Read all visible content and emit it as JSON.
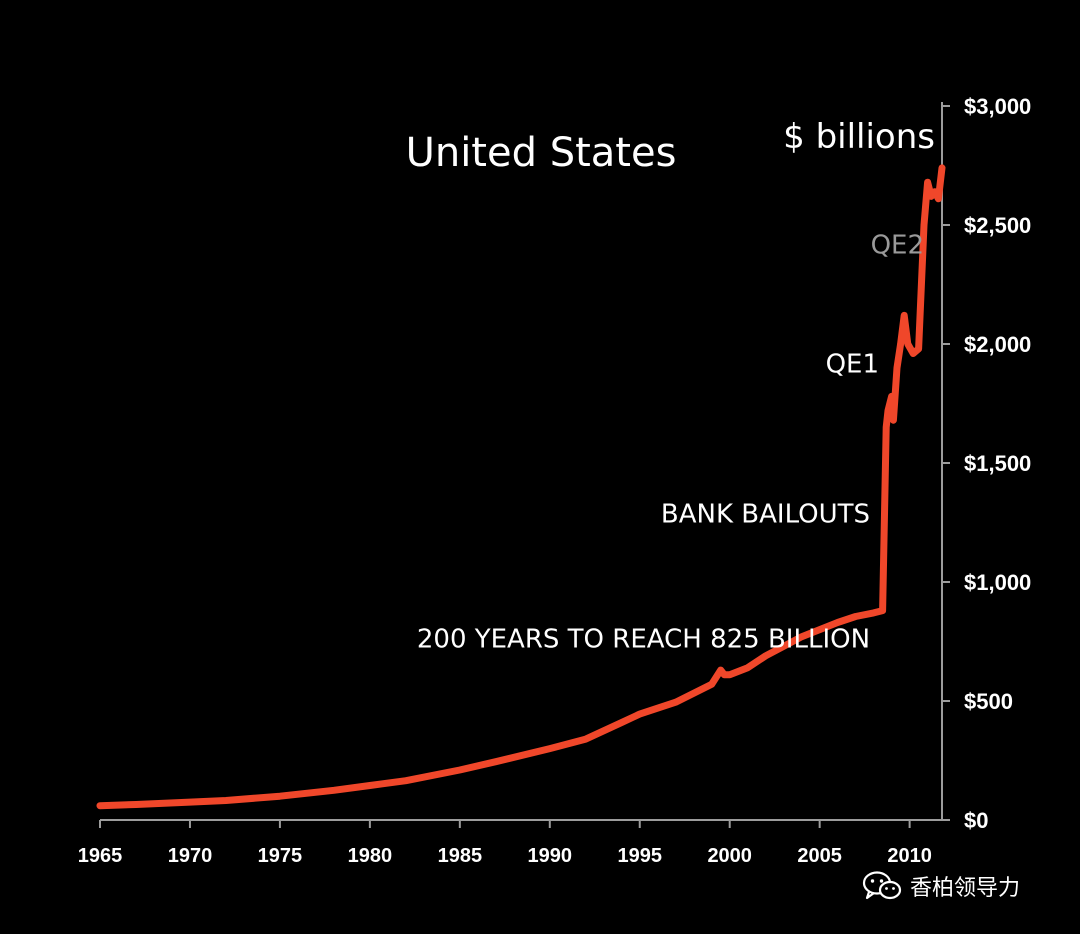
{
  "chart_data": {
    "type": "line",
    "title": "United States",
    "ylabel": "$ billions",
    "xlabel": "",
    "xlim": [
      1965,
      2011.8
    ],
    "ylim": [
      0,
      3000
    ],
    "x_ticks": [
      1965,
      1970,
      1975,
      1980,
      1985,
      1990,
      1995,
      2000,
      2005,
      2010
    ],
    "y_ticks": [
      0,
      500,
      1000,
      1500,
      2000,
      2500,
      3000
    ],
    "y_tick_labels": [
      "$0",
      "$500",
      "$1,000",
      "$1,500",
      "$2,000",
      "$2,500",
      "$3,000"
    ],
    "grid": false,
    "line_color": "#f0472a",
    "series": [
      {
        "x": [
          1965,
          1967,
          1970,
          1972,
          1975,
          1978,
          1980,
          1982,
          1985,
          1987,
          1990,
          1992,
          1994,
          1995,
          1997,
          1999,
          1999.5,
          1999.7,
          2000,
          2001,
          2002,
          2003,
          2004,
          2005,
          2006,
          2007,
          2008,
          2008.5,
          2008.7,
          2008.8,
          2009,
          2009.1,
          2009.3,
          2009.5,
          2009.7,
          2009.9,
          2010.2,
          2010.5,
          2010.8,
          2011,
          2011.2,
          2011.4,
          2011.6,
          2011.8
        ],
        "y": [
          60,
          65,
          75,
          82,
          100,
          125,
          145,
          165,
          210,
          245,
          300,
          340,
          410,
          445,
          495,
          570,
          630,
          610,
          610,
          640,
          690,
          730,
          770,
          800,
          830,
          855,
          870,
          880,
          1650,
          1720,
          1780,
          1680,
          1900,
          2000,
          2120,
          2000,
          1960,
          1980,
          2500,
          2680,
          2620,
          2640,
          2610,
          2740
        ]
      }
    ],
    "annotations": [
      {
        "text": "QE2",
        "x": 2010.8,
        "y": 2380,
        "color": "#9a9a9a"
      },
      {
        "text": "QE1",
        "x": 2008.3,
        "y": 1880,
        "color": "#ffffff"
      },
      {
        "text": "BANK BAILOUTS",
        "x": 2007.8,
        "y": 1250,
        "color": "#ffffff"
      },
      {
        "text": "200 YEARS TO REACH 825 BILLION",
        "x": 2007.8,
        "y": 725,
        "color": "#ffffff"
      }
    ]
  },
  "watermark": {
    "text": "香柏领导力",
    "icon": "wechat-icon"
  }
}
